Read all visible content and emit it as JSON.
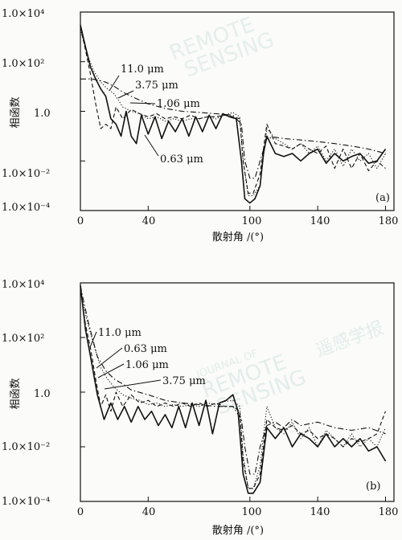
{
  "chart_data": [
    {
      "type": "line",
      "panel_label": "(a)",
      "xlabel": "散射角 /(°)",
      "ylabel": "相函数",
      "xlim": [
        0,
        185
      ],
      "ylim": [
        0.0001,
        10000
      ],
      "yscale": "log",
      "x_ticks": [
        "0",
        "40",
        "100",
        "140",
        "180"
      ],
      "x_tick_values": [
        0,
        40,
        100,
        140,
        180
      ],
      "y_ticks": [
        "1.0×10⁴",
        "1.0×10²",
        "1.0",
        "1.0×10⁻²",
        "1.0×10⁻⁴"
      ],
      "y_tick_values": [
        10000,
        100,
        1,
        0.01,
        0.0001
      ],
      "series": [
        {
          "name": "0.63 μm",
          "style": "solid",
          "x": [
            0,
            3,
            6,
            9,
            12,
            15,
            18,
            21,
            24,
            27,
            30,
            33,
            36,
            40,
            44,
            48,
            52,
            56,
            60,
            64,
            68,
            72,
            76,
            80,
            84,
            88,
            92,
            95,
            97,
            100,
            103,
            106,
            108,
            110,
            115,
            120,
            125,
            130,
            135,
            140,
            145,
            150,
            155,
            160,
            165,
            170,
            175,
            180
          ],
          "y": [
            3000,
            400,
            60,
            20,
            8,
            4,
            0.5,
            0.3,
            0.1,
            1.0,
            0.1,
            0.05,
            0.7,
            0.12,
            0.6,
            0.08,
            0.4,
            0.15,
            0.5,
            0.1,
            0.6,
            0.15,
            0.7,
            0.2,
            0.8,
            0.6,
            0.5,
            0.01,
            0.0003,
            0.0002,
            0.0003,
            0.001,
            0.02,
            0.1,
            0.02,
            0.015,
            0.02,
            0.01,
            0.02,
            0.03,
            0.008,
            0.02,
            0.01,
            0.015,
            0.02,
            0.008,
            0.01,
            0.03
          ]
        },
        {
          "name": "1.06 μm",
          "style": "dotted",
          "x": [
            0,
            4,
            8,
            12,
            16,
            20,
            25,
            30,
            35,
            40,
            45,
            50,
            55,
            60,
            65,
            70,
            75,
            80,
            85,
            90,
            94,
            96,
            99,
            102,
            106,
            110,
            115,
            120,
            125,
            130,
            135,
            140,
            145,
            150,
            155,
            160,
            165,
            170,
            175,
            180
          ],
          "y": [
            2000,
            200,
            40,
            15,
            8,
            5,
            1.5,
            1.0,
            0.8,
            0.5,
            0.6,
            0.4,
            0.5,
            0.4,
            0.5,
            0.5,
            0.6,
            0.5,
            0.7,
            0.9,
            0.6,
            0.01,
            0.0004,
            0.0004,
            0.001,
            0.2,
            0.08,
            0.05,
            0.03,
            0.05,
            0.02,
            0.04,
            0.01,
            0.03,
            0.006,
            0.03,
            0.01,
            0.02,
            0.005,
            0.02
          ]
        },
        {
          "name": "3.75 μm",
          "style": "dashed",
          "x": [
            0,
            3,
            6,
            9,
            12,
            15,
            18,
            21,
            25,
            30,
            35,
            40,
            45,
            50,
            55,
            60,
            65,
            70,
            75,
            80,
            85,
            90,
            94,
            96,
            99,
            102,
            106,
            110,
            115,
            120,
            125,
            130,
            135,
            140,
            145,
            150,
            155,
            160,
            165,
            170,
            175,
            180
          ],
          "y": [
            2500,
            300,
            30,
            2,
            0.2,
            0.3,
            0.2,
            1.5,
            0.5,
            1.2,
            0.8,
            0.6,
            0.8,
            0.5,
            0.6,
            0.5,
            0.7,
            0.5,
            0.6,
            0.6,
            0.7,
            0.6,
            0.5,
            0.01,
            0.0005,
            0.0005,
            0.003,
            0.3,
            0.05,
            0.04,
            0.03,
            0.05,
            0.03,
            0.02,
            0.04,
            0.005,
            0.03,
            0.005,
            0.02,
            0.004,
            0.01,
            0.005
          ]
        },
        {
          "name": "11.0 μm",
          "style": "dashdot",
          "x": [
            0,
            2,
            4,
            7,
            10,
            15,
            20,
            25,
            30,
            40,
            50,
            60,
            70,
            80,
            90,
            95,
            97,
            100,
            103,
            106,
            110,
            115,
            120,
            130,
            140,
            150,
            160,
            170,
            180
          ],
          "y": [
            20,
            20,
            20,
            20,
            18,
            15,
            10,
            6,
            4,
            2,
            1.3,
            1,
            0.9,
            0.8,
            0.7,
            0.3,
            0.01,
            0.002,
            0.002,
            0.01,
            0.08,
            0.09,
            0.08,
            0.07,
            0.06,
            0.05,
            0.04,
            0.03,
            0.02
          ]
        }
      ],
      "annotations": [
        "11.0 μm",
        "3.75 μm",
        "1.06 μm",
        "0.63 μm"
      ]
    },
    {
      "type": "line",
      "panel_label": "(b)",
      "xlabel": "散射角 /(°)",
      "ylabel": "相函数",
      "xlim": [
        0,
        185
      ],
      "ylim": [
        0.0001,
        10000
      ],
      "yscale": "log",
      "x_ticks": [
        "0",
        "40",
        "100",
        "140",
        "180"
      ],
      "x_tick_values": [
        0,
        40,
        100,
        140,
        180
      ],
      "y_ticks": [
        "1.0×10⁴",
        "1.0×10²",
        "1.0",
        "1.0×10⁻²",
        "1.0×10⁻⁴"
      ],
      "y_tick_values": [
        10000,
        100,
        1,
        0.01,
        0.0001
      ],
      "series": [
        {
          "name": "0.63 μm",
          "style": "solid",
          "x": [
            0,
            3,
            6,
            10,
            14,
            18,
            22,
            26,
            30,
            34,
            38,
            42,
            46,
            50,
            54,
            58,
            62,
            66,
            70,
            74,
            78,
            82,
            86,
            90,
            93,
            96,
            99,
            102,
            106,
            108,
            110,
            115,
            120,
            125,
            130,
            135,
            140,
            145,
            150,
            155,
            160,
            165,
            170,
            175,
            180
          ],
          "y": [
            8000,
            200,
            20,
            0.8,
            0.1,
            0.4,
            0.1,
            0.3,
            0.08,
            0.3,
            0.1,
            0.2,
            0.06,
            0.15,
            0.05,
            0.3,
            0.05,
            0.4,
            0.06,
            0.5,
            0.03,
            0.4,
            0.5,
            0.8,
            0.2,
            0.001,
            0.0002,
            0.0002,
            0.0005,
            0.005,
            0.05,
            0.02,
            0.05,
            0.01,
            0.03,
            0.02,
            0.01,
            0.03,
            0.01,
            0.02,
            0.01,
            0.02,
            0.007,
            0.01,
            0.003
          ]
        },
        {
          "name": "1.06 μm",
          "style": "dotted",
          "x": [
            0,
            4,
            8,
            12,
            16,
            20,
            25,
            30,
            35,
            40,
            45,
            50,
            55,
            60,
            65,
            70,
            75,
            80,
            85,
            90,
            94,
            96,
            99,
            102,
            106,
            110,
            115,
            120,
            125,
            130,
            135,
            140,
            145,
            150,
            155,
            160,
            165,
            170,
            175,
            180
          ],
          "y": [
            5000,
            400,
            50,
            8,
            3,
            1.5,
            0.8,
            0.6,
            0.5,
            0.35,
            0.4,
            0.3,
            0.35,
            0.3,
            0.35,
            0.3,
            0.4,
            0.35,
            0.45,
            0.5,
            0.3,
            0.005,
            0.0003,
            0.0003,
            0.002,
            0.3,
            0.05,
            0.03,
            0.08,
            0.02,
            0.05,
            0.01,
            0.04,
            0.02,
            0.01,
            0.03,
            0.01,
            0.02,
            0.01,
            0.05
          ]
        },
        {
          "name": "3.75 μm",
          "style": "dashed",
          "x": [
            0,
            3,
            6,
            9,
            12,
            15,
            18,
            21,
            25,
            30,
            35,
            40,
            45,
            50,
            55,
            60,
            65,
            70,
            75,
            80,
            85,
            90,
            94,
            96,
            99,
            102,
            106,
            110,
            115,
            120,
            125,
            130,
            135,
            140,
            145,
            150,
            155,
            160,
            165,
            170,
            175,
            180
          ],
          "y": [
            6000,
            300,
            40,
            3,
            0.3,
            0.8,
            0.2,
            1.0,
            0.3,
            0.8,
            0.4,
            0.5,
            0.3,
            0.4,
            0.3,
            0.4,
            0.3,
            0.4,
            0.3,
            0.4,
            0.3,
            0.3,
            0.2,
            0.003,
            0.0003,
            0.0003,
            0.001,
            0.1,
            0.05,
            0.04,
            0.06,
            0.03,
            0.04,
            0.02,
            0.03,
            0.02,
            0.01,
            0.02,
            0.015,
            0.02,
            0.03,
            0.2
          ]
        },
        {
          "name": "11.0 μm",
          "style": "dashdot",
          "x": [
            0,
            2,
            5,
            10,
            15,
            20,
            25,
            30,
            40,
            50,
            60,
            70,
            80,
            90,
            95,
            97,
            100,
            103,
            106,
            110,
            115,
            120,
            125,
            130,
            140,
            150,
            160,
            170,
            180
          ],
          "y": [
            8000,
            2000,
            300,
            20,
            6,
            3,
            2,
            1.2,
            0.8,
            0.5,
            0.4,
            0.35,
            0.3,
            0.3,
            0.1,
            0.01,
            0.001,
            0.001,
            0.01,
            0.06,
            0.08,
            0.05,
            0.1,
            0.06,
            0.08,
            0.05,
            0.04,
            0.05,
            0.03
          ]
        }
      ],
      "annotations": [
        "11.0 μm",
        "0.63 μm",
        "1.06 μm",
        "3.75 μm"
      ]
    }
  ],
  "watermark": {
    "line1": "JOURNAL OF",
    "line2": "REMOTE",
    "line3": "SENSING",
    "cjk": "遥感学报"
  }
}
